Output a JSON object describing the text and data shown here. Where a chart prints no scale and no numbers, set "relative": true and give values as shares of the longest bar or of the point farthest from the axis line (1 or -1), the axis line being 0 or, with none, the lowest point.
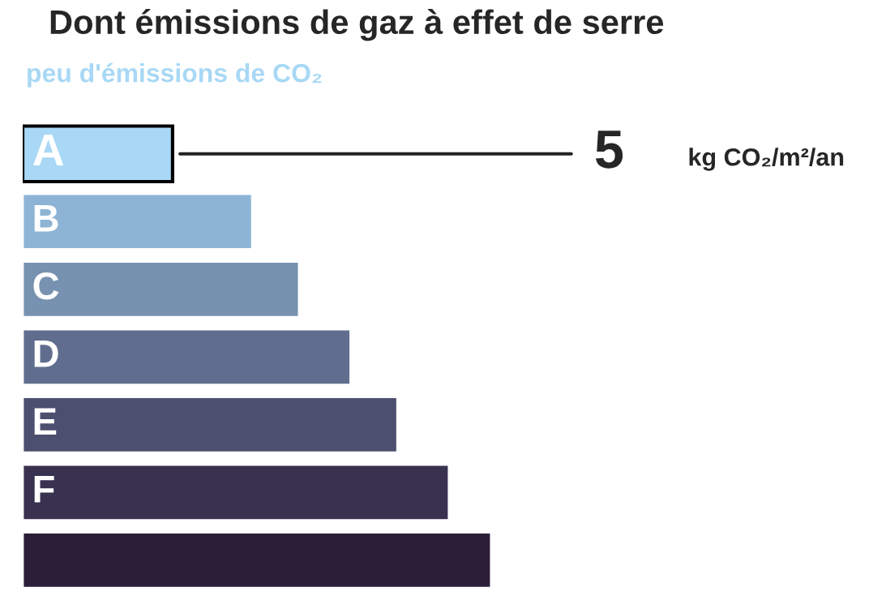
{
  "chart_data": {
    "type": "bar",
    "orientation": "horizontal",
    "relative": true,
    "title": "Dont émissions de gaz à effet de serre",
    "subtitle": "peu d'émissions de CO₂",
    "categories": [
      "A",
      "B",
      "C",
      "D",
      "E",
      "F",
      null
    ],
    "values": [
      0.32,
      0.49,
      0.59,
      0.7,
      0.8,
      0.91,
      1.0
    ],
    "colors": [
      "#a8d8f5",
      "#8db4d5",
      "#7792b0",
      "#606d8e",
      "#4c4f6e",
      "#38314f",
      "#2b1e38"
    ],
    "annotations": [
      "5",
      "kg CO₂/m²/an"
    ]
  }
}
